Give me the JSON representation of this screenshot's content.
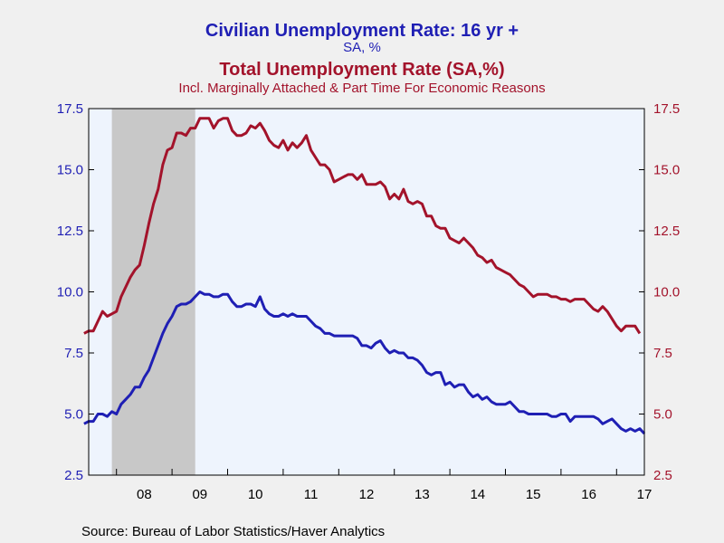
{
  "header": {
    "series1_title": "Civilian Unemployment Rate: 16 yr +",
    "series1_subtitle": "SA, %",
    "series2_title": "Total Unemployment Rate (SA,%)",
    "series2_subtitle": "Incl. Marginally Attached & Part Time For Economic Reasons"
  },
  "footer": {
    "source": "Source:  Bureau of Labor Statistics/Haver Analytics"
  },
  "chart_data": {
    "type": "line",
    "x_range": [
      2007.5,
      2017.5
    ],
    "ylim": [
      2.5,
      17.5
    ],
    "y_ticks": [
      "2.5",
      "5.0",
      "7.5",
      "10.0",
      "12.5",
      "15.0",
      "17.5"
    ],
    "x_tick_labels": [
      {
        "label": "08",
        "year": 2008
      },
      {
        "label": "09",
        "year": 2009
      },
      {
        "label": "10",
        "year": 2010
      },
      {
        "label": "11",
        "year": 2011
      },
      {
        "label": "12",
        "year": 2012
      },
      {
        "label": "13",
        "year": 2013
      },
      {
        "label": "14",
        "year": 2014
      },
      {
        "label": "15",
        "year": 2015
      },
      {
        "label": "16",
        "year": 2016
      },
      {
        "label": "17",
        "year": 2017
      }
    ],
    "recession": {
      "start": 2007.917,
      "end": 2009.417,
      "color": "#c8c8c8"
    },
    "plot_background": "#eef4fd",
    "series": [
      {
        "name": "Civilian Unemployment Rate: 16 yr +",
        "color": "#1f1fb4",
        "axis": "left",
        "start": "2007-06",
        "values": [
          4.6,
          4.7,
          4.7,
          5.0,
          5.0,
          4.9,
          5.1,
          5.0,
          5.4,
          5.6,
          5.8,
          6.1,
          6.1,
          6.5,
          6.8,
          7.3,
          7.8,
          8.3,
          8.7,
          9.0,
          9.4,
          9.5,
          9.5,
          9.6,
          9.8,
          10.0,
          9.9,
          9.9,
          9.8,
          9.8,
          9.9,
          9.9,
          9.6,
          9.4,
          9.4,
          9.5,
          9.5,
          9.4,
          9.8,
          9.3,
          9.1,
          9.0,
          9.0,
          9.1,
          9.0,
          9.1,
          9.0,
          9.0,
          9.0,
          8.8,
          8.6,
          8.5,
          8.3,
          8.3,
          8.2,
          8.2,
          8.2,
          8.2,
          8.2,
          8.1,
          7.8,
          7.8,
          7.7,
          7.9,
          8.0,
          7.7,
          7.5,
          7.6,
          7.5,
          7.5,
          7.3,
          7.3,
          7.2,
          7.0,
          6.7,
          6.6,
          6.7,
          6.7,
          6.2,
          6.3,
          6.1,
          6.2,
          6.2,
          5.9,
          5.7,
          5.8,
          5.6,
          5.7,
          5.5,
          5.4,
          5.4,
          5.4,
          5.5,
          5.3,
          5.1,
          5.1,
          5.0,
          5.0,
          5.0,
          5.0,
          5.0,
          4.9,
          4.9,
          5.0,
          5.0,
          4.7,
          4.9,
          4.9,
          4.9,
          4.9,
          4.9,
          4.8,
          4.6,
          4.7,
          4.8,
          4.6,
          4.4,
          4.3,
          4.4,
          4.3,
          4.4,
          4.2
        ]
      },
      {
        "name": "Total Unemployment Rate (SA,%)",
        "color": "#a3132b",
        "axis": "right",
        "start": "2007-06",
        "values": [
          8.3,
          8.4,
          8.4,
          8.8,
          9.2,
          9.0,
          9.1,
          9.2,
          9.8,
          10.2,
          10.6,
          10.9,
          11.1,
          11.9,
          12.8,
          13.6,
          14.2,
          15.2,
          15.8,
          15.9,
          16.5,
          16.5,
          16.4,
          16.7,
          16.7,
          17.1,
          17.1,
          17.1,
          16.7,
          17.0,
          17.1,
          17.1,
          16.6,
          16.4,
          16.4,
          16.5,
          16.8,
          16.7,
          16.9,
          16.6,
          16.2,
          16.0,
          15.9,
          16.2,
          15.8,
          16.1,
          15.9,
          16.1,
          16.4,
          15.8,
          15.5,
          15.2,
          15.2,
          15.0,
          14.5,
          14.6,
          14.7,
          14.8,
          14.8,
          14.6,
          14.8,
          14.4,
          14.4,
          14.4,
          14.5,
          14.3,
          13.8,
          14.0,
          13.8,
          14.2,
          13.7,
          13.6,
          13.7,
          13.6,
          13.1,
          13.1,
          12.7,
          12.6,
          12.6,
          12.2,
          12.1,
          12.0,
          12.2,
          12.0,
          11.8,
          11.5,
          11.4,
          11.2,
          11.3,
          11.0,
          10.9,
          10.8,
          10.7,
          10.5,
          10.3,
          10.2,
          10.0,
          9.8,
          9.9,
          9.9,
          9.9,
          9.8,
          9.8,
          9.7,
          9.7,
          9.6,
          9.7,
          9.7,
          9.7,
          9.5,
          9.3,
          9.2,
          9.4,
          9.2,
          8.9,
          8.6,
          8.4,
          8.6,
          8.6,
          8.6,
          8.3
        ]
      }
    ],
    "left_axis_color": "#1f1fb4",
    "right_axis_color": "#a3132b",
    "grid": false
  }
}
